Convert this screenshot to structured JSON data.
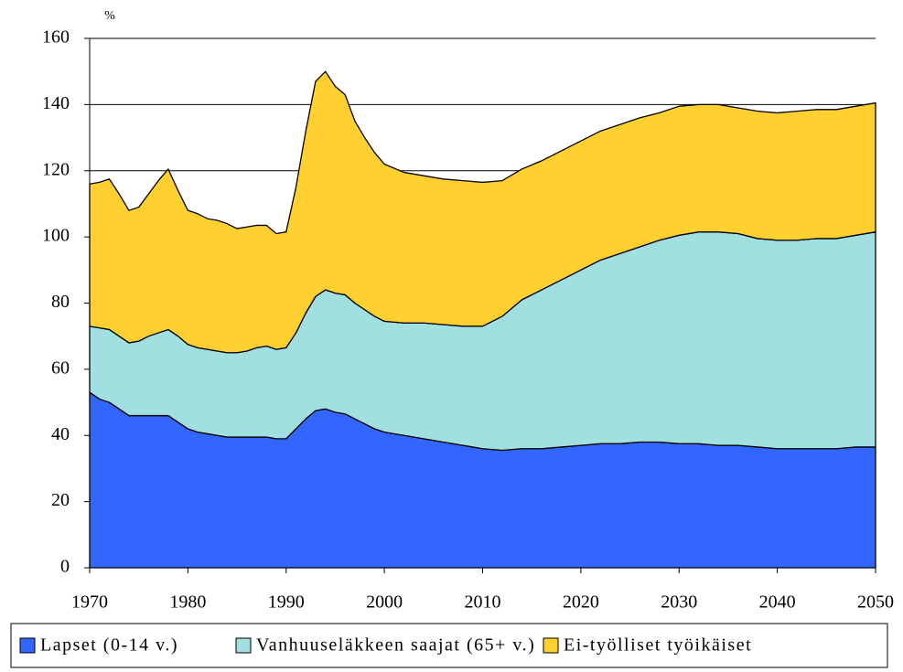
{
  "chart_data": {
    "type": "stacked_area",
    "ylabel": "%",
    "x": [
      1970,
      1971,
      1972,
      1973,
      1974,
      1975,
      1976,
      1977,
      1978,
      1979,
      1980,
      1981,
      1982,
      1983,
      1984,
      1985,
      1986,
      1987,
      1988,
      1989,
      1990,
      1991,
      1992,
      1993,
      1994,
      1995,
      1996,
      1997,
      1998,
      1999,
      2000,
      2002,
      2004,
      2006,
      2008,
      2010,
      2012,
      2014,
      2016,
      2018,
      2020,
      2022,
      2024,
      2026,
      2028,
      2030,
      2032,
      2034,
      2036,
      2038,
      2040,
      2042,
      2044,
      2046,
      2048,
      2050
    ],
    "series": [
      {
        "name": "Lapset (0-14 v.)",
        "color": "#3366ff",
        "values": [
          53,
          51,
          50,
          48,
          46,
          46,
          46,
          46,
          46,
          44,
          42,
          41,
          40.5,
          40,
          39.5,
          39.5,
          39.5,
          39.5,
          39.5,
          39,
          39,
          42,
          45,
          47.5,
          48,
          47,
          46.5,
          45,
          43.5,
          42,
          41,
          40,
          39,
          38,
          37,
          36,
          35.5,
          36,
          36,
          36.5,
          37,
          37.5,
          37.5,
          38,
          38,
          37.5,
          37.5,
          37,
          37,
          36.5,
          36,
          36,
          36,
          36,
          36.5,
          36.5
        ]
      },
      {
        "name": "Vanhuuseläkkeen saajat (65+ v.)",
        "color": "#a0e0e0",
        "values": [
          20,
          21.5,
          22,
          22,
          22,
          22.5,
          24,
          25,
          26,
          26,
          25.5,
          25.5,
          25.5,
          25.5,
          25.5,
          25.5,
          26,
          27,
          27.5,
          27,
          27.5,
          29,
          32,
          34.5,
          36,
          36,
          36,
          35,
          34.5,
          34,
          33.5,
          34,
          35,
          35.5,
          36,
          37,
          40.5,
          45,
          48,
          50.5,
          53,
          55.5,
          57.5,
          59,
          61,
          63,
          64,
          64.5,
          64,
          63,
          63,
          63,
          63.5,
          63.5,
          64,
          65
        ]
      },
      {
        "name": "Ei-työlliset työikäiset",
        "color": "#ffd030",
        "values": [
          43,
          44,
          45.5,
          43,
          40,
          40.5,
          43,
          46,
          48.5,
          44,
          40.5,
          40.5,
          39.5,
          39.5,
          39,
          37.5,
          37.5,
          37,
          36.5,
          35,
          35,
          44,
          55,
          65,
          66,
          62.5,
          60.5,
          55,
          52,
          49.5,
          47.5,
          45.5,
          44.5,
          44,
          44,
          43.5,
          41,
          39.5,
          39,
          39,
          39,
          39,
          39,
          39,
          38.5,
          39,
          38.5,
          38.5,
          38,
          38.5,
          38.5,
          39,
          39,
          39,
          39,
          39
        ]
      }
    ],
    "xlim": [
      1970,
      2050
    ],
    "xticks": [
      1970,
      1980,
      1990,
      2000,
      2010,
      2020,
      2030,
      2040,
      2050
    ],
    "ylim": [
      0,
      160
    ],
    "yticks": [
      0,
      20,
      40,
      60,
      80,
      100,
      120,
      140,
      160
    ],
    "grid": true,
    "legend": "bottom"
  }
}
